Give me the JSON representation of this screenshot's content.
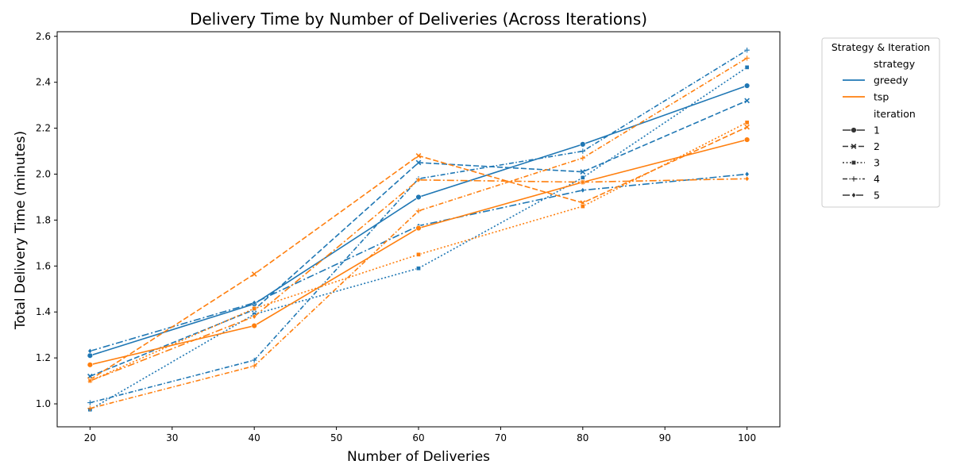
{
  "chart_data": {
    "type": "line",
    "title": "Delivery Time by Number of Deliveries (Across Iterations)",
    "xlabel": "Number of Deliveries",
    "ylabel": "Total Delivery Time (minutes)",
    "xlim": [
      16,
      104
    ],
    "ylim": [
      0.9,
      2.62
    ],
    "xticks": [
      20,
      30,
      40,
      50,
      60,
      70,
      80,
      90,
      100
    ],
    "yticks": [
      1.0,
      1.2,
      1.4,
      1.6,
      1.8,
      2.0,
      2.2,
      2.4,
      2.6
    ],
    "x": [
      20,
      40,
      60,
      80,
      100
    ],
    "grid": false,
    "legend": {
      "title": "Strategy & Iteration",
      "placement": "outside-top-right",
      "strategy_heading": "strategy",
      "iteration_heading": "iteration",
      "strategies": [
        {
          "name": "greedy",
          "color": "#1f77b4"
        },
        {
          "name": "tsp",
          "color": "#ff7f0e"
        }
      ],
      "iterations": [
        {
          "name": "1",
          "dash": "solid",
          "marker": "circle"
        },
        {
          "name": "2",
          "dash": "dashed",
          "marker": "x"
        },
        {
          "name": "3",
          "dash": "dotted",
          "marker": "square"
        },
        {
          "name": "4",
          "dash": "dashdot",
          "marker": "plus"
        },
        {
          "name": "5",
          "dash": "longdashdot",
          "marker": "diamond"
        }
      ]
    },
    "series": [
      {
        "strategy": "greedy",
        "iteration": "1",
        "values": [
          1.21,
          1.435,
          1.9,
          2.13,
          2.385
        ]
      },
      {
        "strategy": "greedy",
        "iteration": "2",
        "values": [
          1.12,
          1.41,
          2.05,
          2.01,
          2.32
        ]
      },
      {
        "strategy": "greedy",
        "iteration": "3",
        "values": [
          0.975,
          1.39,
          1.59,
          1.985,
          2.465
        ]
      },
      {
        "strategy": "greedy",
        "iteration": "4",
        "values": [
          1.005,
          1.19,
          1.98,
          2.1,
          2.54
        ]
      },
      {
        "strategy": "greedy",
        "iteration": "5",
        "values": [
          1.23,
          1.44,
          1.775,
          1.93,
          2.0
        ]
      },
      {
        "strategy": "tsp",
        "iteration": "1",
        "values": [
          1.17,
          1.34,
          1.765,
          1.965,
          2.15
        ]
      },
      {
        "strategy": "tsp",
        "iteration": "2",
        "values": [
          1.105,
          1.565,
          2.08,
          1.875,
          2.205
        ]
      },
      {
        "strategy": "tsp",
        "iteration": "3",
        "values": [
          1.1,
          1.415,
          1.65,
          1.86,
          2.225
        ]
      },
      {
        "strategy": "tsp",
        "iteration": "4",
        "values": [
          0.98,
          1.165,
          1.84,
          2.07,
          2.505
        ]
      },
      {
        "strategy": "tsp",
        "iteration": "5",
        "values": [
          1.1,
          1.38,
          1.975,
          1.965,
          1.98
        ]
      }
    ]
  }
}
